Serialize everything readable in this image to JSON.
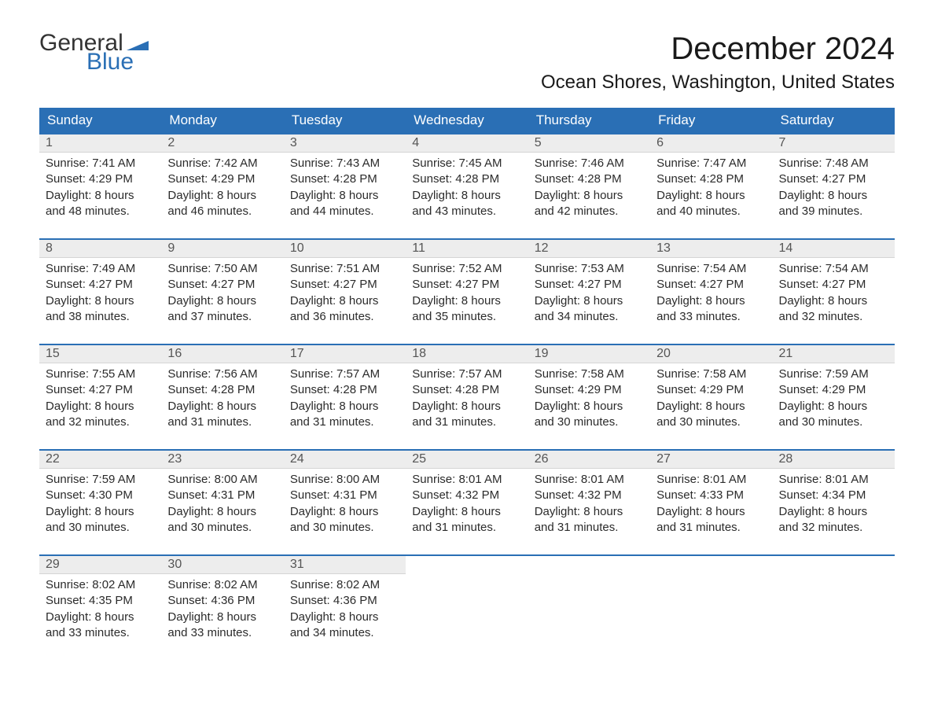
{
  "brand": {
    "general": "General",
    "blue": "Blue"
  },
  "title": "December 2024",
  "location": "Ocean Shores, Washington, United States",
  "colors": {
    "header_bg": "#2a6fb5",
    "header_text": "#ffffff",
    "daynum_bg": "#ededed",
    "body_text": "#2b2b2b",
    "page_bg": "#ffffff"
  },
  "daynames": [
    "Sunday",
    "Monday",
    "Tuesday",
    "Wednesday",
    "Thursday",
    "Friday",
    "Saturday"
  ],
  "weeks": [
    [
      {
        "n": "1",
        "sunrise": "Sunrise: 7:41 AM",
        "sunset": "Sunset: 4:29 PM",
        "d1": "Daylight: 8 hours",
        "d2": "and 48 minutes."
      },
      {
        "n": "2",
        "sunrise": "Sunrise: 7:42 AM",
        "sunset": "Sunset: 4:29 PM",
        "d1": "Daylight: 8 hours",
        "d2": "and 46 minutes."
      },
      {
        "n": "3",
        "sunrise": "Sunrise: 7:43 AM",
        "sunset": "Sunset: 4:28 PM",
        "d1": "Daylight: 8 hours",
        "d2": "and 44 minutes."
      },
      {
        "n": "4",
        "sunrise": "Sunrise: 7:45 AM",
        "sunset": "Sunset: 4:28 PM",
        "d1": "Daylight: 8 hours",
        "d2": "and 43 minutes."
      },
      {
        "n": "5",
        "sunrise": "Sunrise: 7:46 AM",
        "sunset": "Sunset: 4:28 PM",
        "d1": "Daylight: 8 hours",
        "d2": "and 42 minutes."
      },
      {
        "n": "6",
        "sunrise": "Sunrise: 7:47 AM",
        "sunset": "Sunset: 4:28 PM",
        "d1": "Daylight: 8 hours",
        "d2": "and 40 minutes."
      },
      {
        "n": "7",
        "sunrise": "Sunrise: 7:48 AM",
        "sunset": "Sunset: 4:27 PM",
        "d1": "Daylight: 8 hours",
        "d2": "and 39 minutes."
      }
    ],
    [
      {
        "n": "8",
        "sunrise": "Sunrise: 7:49 AM",
        "sunset": "Sunset: 4:27 PM",
        "d1": "Daylight: 8 hours",
        "d2": "and 38 minutes."
      },
      {
        "n": "9",
        "sunrise": "Sunrise: 7:50 AM",
        "sunset": "Sunset: 4:27 PM",
        "d1": "Daylight: 8 hours",
        "d2": "and 37 minutes."
      },
      {
        "n": "10",
        "sunrise": "Sunrise: 7:51 AM",
        "sunset": "Sunset: 4:27 PM",
        "d1": "Daylight: 8 hours",
        "d2": "and 36 minutes."
      },
      {
        "n": "11",
        "sunrise": "Sunrise: 7:52 AM",
        "sunset": "Sunset: 4:27 PM",
        "d1": "Daylight: 8 hours",
        "d2": "and 35 minutes."
      },
      {
        "n": "12",
        "sunrise": "Sunrise: 7:53 AM",
        "sunset": "Sunset: 4:27 PM",
        "d1": "Daylight: 8 hours",
        "d2": "and 34 minutes."
      },
      {
        "n": "13",
        "sunrise": "Sunrise: 7:54 AM",
        "sunset": "Sunset: 4:27 PM",
        "d1": "Daylight: 8 hours",
        "d2": "and 33 minutes."
      },
      {
        "n": "14",
        "sunrise": "Sunrise: 7:54 AM",
        "sunset": "Sunset: 4:27 PM",
        "d1": "Daylight: 8 hours",
        "d2": "and 32 minutes."
      }
    ],
    [
      {
        "n": "15",
        "sunrise": "Sunrise: 7:55 AM",
        "sunset": "Sunset: 4:27 PM",
        "d1": "Daylight: 8 hours",
        "d2": "and 32 minutes."
      },
      {
        "n": "16",
        "sunrise": "Sunrise: 7:56 AM",
        "sunset": "Sunset: 4:28 PM",
        "d1": "Daylight: 8 hours",
        "d2": "and 31 minutes."
      },
      {
        "n": "17",
        "sunrise": "Sunrise: 7:57 AM",
        "sunset": "Sunset: 4:28 PM",
        "d1": "Daylight: 8 hours",
        "d2": "and 31 minutes."
      },
      {
        "n": "18",
        "sunrise": "Sunrise: 7:57 AM",
        "sunset": "Sunset: 4:28 PM",
        "d1": "Daylight: 8 hours",
        "d2": "and 31 minutes."
      },
      {
        "n": "19",
        "sunrise": "Sunrise: 7:58 AM",
        "sunset": "Sunset: 4:29 PM",
        "d1": "Daylight: 8 hours",
        "d2": "and 30 minutes."
      },
      {
        "n": "20",
        "sunrise": "Sunrise: 7:58 AM",
        "sunset": "Sunset: 4:29 PM",
        "d1": "Daylight: 8 hours",
        "d2": "and 30 minutes."
      },
      {
        "n": "21",
        "sunrise": "Sunrise: 7:59 AM",
        "sunset": "Sunset: 4:29 PM",
        "d1": "Daylight: 8 hours",
        "d2": "and 30 minutes."
      }
    ],
    [
      {
        "n": "22",
        "sunrise": "Sunrise: 7:59 AM",
        "sunset": "Sunset: 4:30 PM",
        "d1": "Daylight: 8 hours",
        "d2": "and 30 minutes."
      },
      {
        "n": "23",
        "sunrise": "Sunrise: 8:00 AM",
        "sunset": "Sunset: 4:31 PM",
        "d1": "Daylight: 8 hours",
        "d2": "and 30 minutes."
      },
      {
        "n": "24",
        "sunrise": "Sunrise: 8:00 AM",
        "sunset": "Sunset: 4:31 PM",
        "d1": "Daylight: 8 hours",
        "d2": "and 30 minutes."
      },
      {
        "n": "25",
        "sunrise": "Sunrise: 8:01 AM",
        "sunset": "Sunset: 4:32 PM",
        "d1": "Daylight: 8 hours",
        "d2": "and 31 minutes."
      },
      {
        "n": "26",
        "sunrise": "Sunrise: 8:01 AM",
        "sunset": "Sunset: 4:32 PM",
        "d1": "Daylight: 8 hours",
        "d2": "and 31 minutes."
      },
      {
        "n": "27",
        "sunrise": "Sunrise: 8:01 AM",
        "sunset": "Sunset: 4:33 PM",
        "d1": "Daylight: 8 hours",
        "d2": "and 31 minutes."
      },
      {
        "n": "28",
        "sunrise": "Sunrise: 8:01 AM",
        "sunset": "Sunset: 4:34 PM",
        "d1": "Daylight: 8 hours",
        "d2": "and 32 minutes."
      }
    ],
    [
      {
        "n": "29",
        "sunrise": "Sunrise: 8:02 AM",
        "sunset": "Sunset: 4:35 PM",
        "d1": "Daylight: 8 hours",
        "d2": "and 33 minutes."
      },
      {
        "n": "30",
        "sunrise": "Sunrise: 8:02 AM",
        "sunset": "Sunset: 4:36 PM",
        "d1": "Daylight: 8 hours",
        "d2": "and 33 minutes."
      },
      {
        "n": "31",
        "sunrise": "Sunrise: 8:02 AM",
        "sunset": "Sunset: 4:36 PM",
        "d1": "Daylight: 8 hours",
        "d2": "and 34 minutes."
      },
      {
        "empty": true
      },
      {
        "empty": true
      },
      {
        "empty": true
      },
      {
        "empty": true
      }
    ]
  ]
}
